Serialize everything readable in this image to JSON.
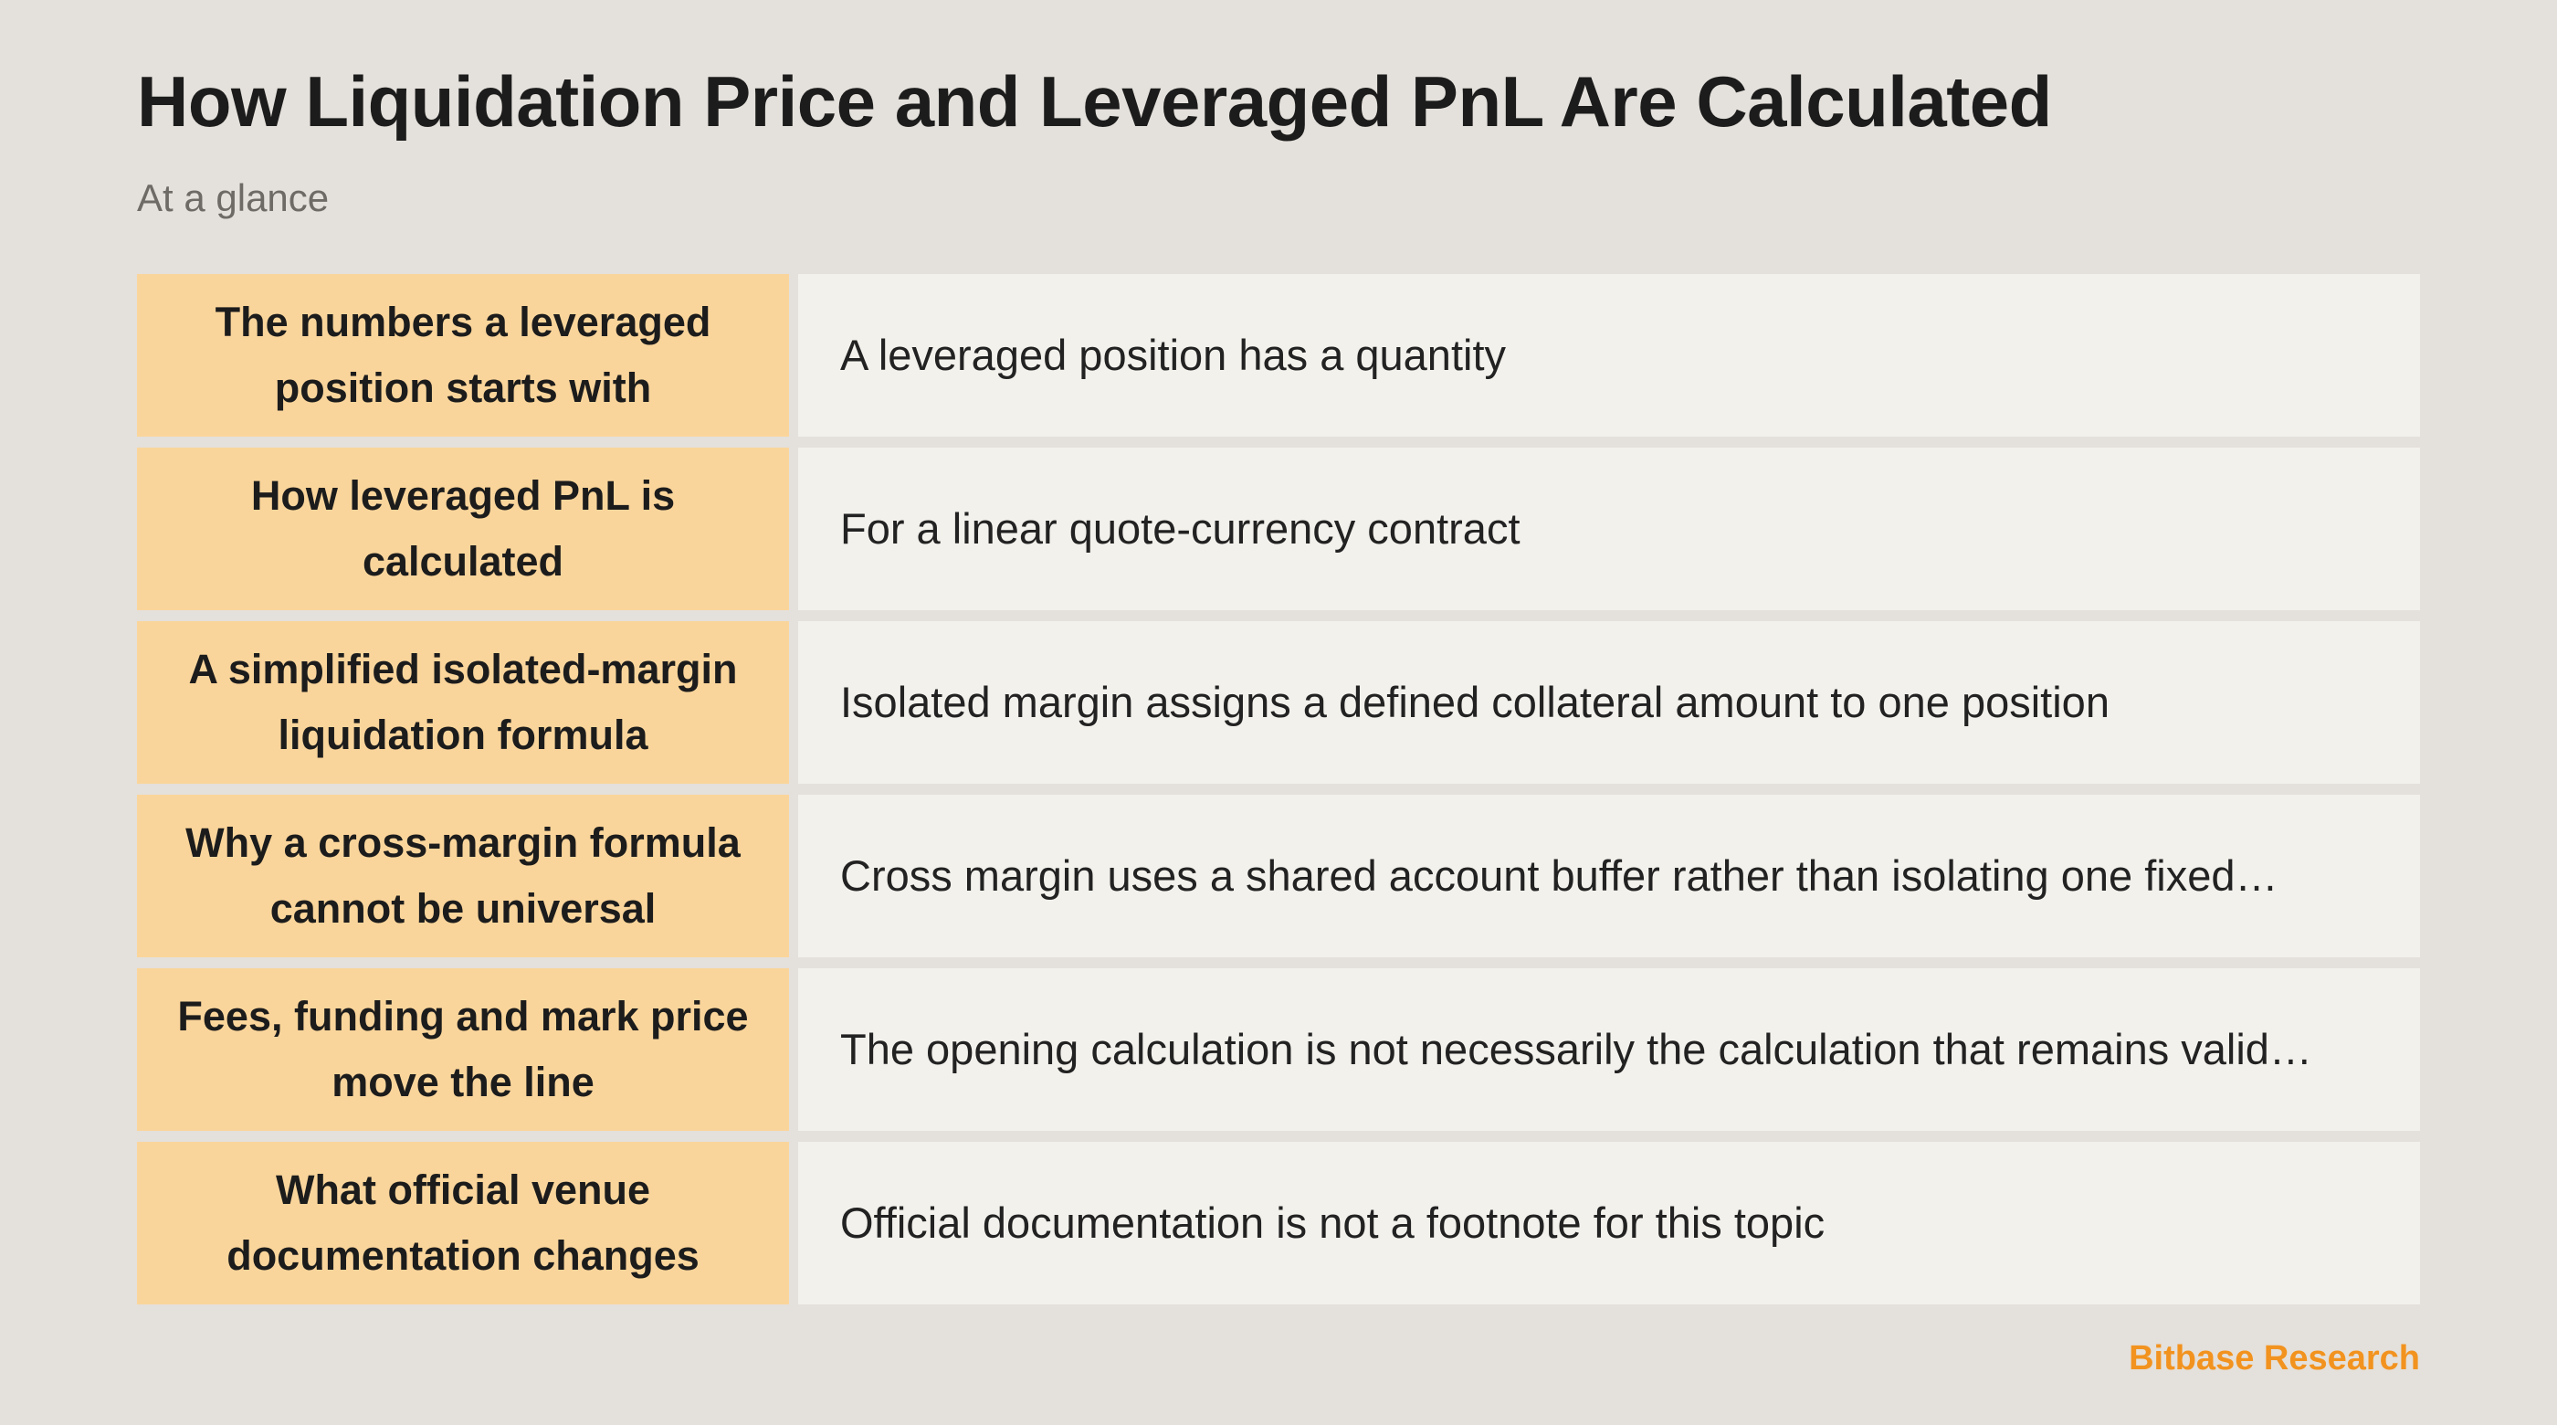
{
  "header": {
    "title": "How Liquidation Price and Leveraged PnL Are Calculated",
    "subtitle": "At a glance"
  },
  "rows": [
    {
      "key": "The numbers a leveraged position starts with",
      "value": "A leveraged position has a quantity"
    },
    {
      "key": "How leveraged PnL is calculated",
      "value": "For a linear quote-currency contract"
    },
    {
      "key": "A simplified isolated-margin liquidation formula",
      "value": "Isolated margin assigns a defined collateral amount to one position"
    },
    {
      "key": "Why a cross-margin formula cannot be universal",
      "value": "Cross margin uses a shared account buffer rather than isolating one fixed…"
    },
    {
      "key": "Fees, funding and mark price move the line",
      "value": "The opening calculation is not necessarily the calculation that remains valid…"
    },
    {
      "key": "What official venue documentation changes",
      "value": "Official documentation is not a footnote for this topic"
    }
  ],
  "footer": {
    "brand": "Bitbase Research"
  },
  "colors": {
    "background": "#e4e0db",
    "key_cell": "#fad59b",
    "value_cell": "#f3f1ec",
    "brand_accent": "#f2931f"
  }
}
